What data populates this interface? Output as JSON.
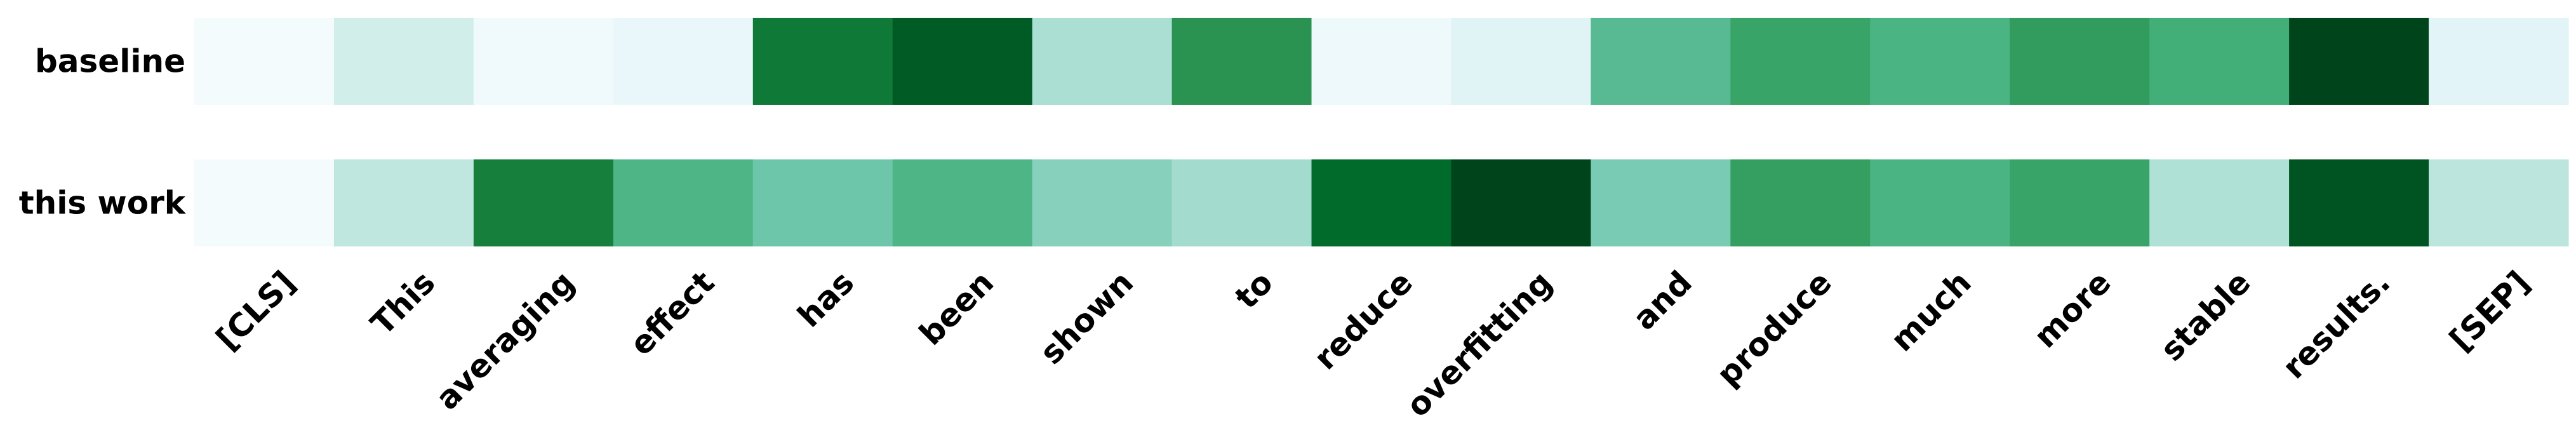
{
  "chart_data": {
    "type": "heatmap",
    "colormap": "BuGn",
    "color_range": [
      0,
      1
    ],
    "rows": [
      "baseline",
      "this work"
    ],
    "columns": [
      "[CLS]",
      "This",
      "averaging",
      "effect",
      "has",
      "been",
      "shown",
      "to",
      "reduce",
      "overfitting",
      "and",
      "produce",
      "much",
      "more",
      "stable",
      "results.",
      "[SEP]"
    ],
    "values": [
      [
        0.02,
        0.22,
        0.05,
        0.09,
        0.82,
        0.93,
        0.33,
        0.72,
        0.06,
        0.15,
        0.55,
        0.66,
        0.59,
        0.69,
        0.62,
        1.0,
        0.14
      ],
      [
        0.02,
        0.28,
        0.8,
        0.58,
        0.48,
        0.58,
        0.42,
        0.35,
        0.88,
        1.0,
        0.45,
        0.68,
        0.59,
        0.66,
        0.32,
        0.95,
        0.29
      ]
    ],
    "grid": false,
    "legend": "none"
  },
  "colors": {
    "cmap_stops": [
      "#f7fcfd",
      "#e5f5f9",
      "#ccece6",
      "#99d8c9",
      "#66c2a4",
      "#41ae76",
      "#238b45",
      "#006d2c",
      "#00441b"
    ],
    "text": "#000000",
    "background": "#ffffff"
  }
}
